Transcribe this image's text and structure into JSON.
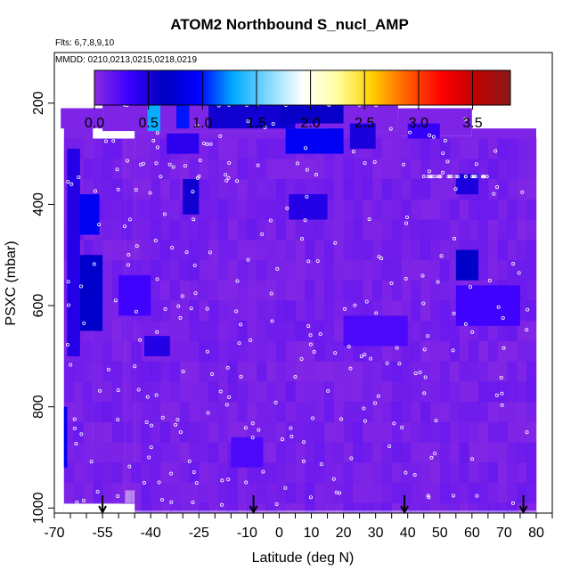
{
  "chart_data": {
    "type": "heatmap",
    "title": "ATOM2 Northbound S_nucl_AMP",
    "flights_note": "Flts: 6,7,8,9,10",
    "dates_note": "MMDD: 0210,0213,0215,0218,0219",
    "xlabel": "Latitude (deg N)",
    "ylabel": "PSXC (mbar)",
    "xlim": [
      -70,
      85
    ],
    "ylim": [
      1010,
      100
    ],
    "x_tick_labels": [
      "-70",
      "-55",
      "-40",
      "-25",
      "-10",
      "0",
      "10",
      "20",
      "30",
      "40",
      "50",
      "60",
      "70",
      "80"
    ],
    "x_tick_values": [
      -70,
      -55,
      -40,
      -25,
      -10,
      0,
      10,
      20,
      30,
      40,
      50,
      60,
      70,
      80
    ],
    "y_tick_labels": [
      "200",
      "400",
      "600",
      "800",
      "1000"
    ],
    "y_tick_values": [
      200,
      400,
      600,
      800,
      1000
    ],
    "colorbar": {
      "range": [
        0.0,
        3.85
      ],
      "tick_labels": [
        "0.0",
        "0.5",
        "1.0",
        "1.5",
        "2.0",
        "2.5",
        "3.0",
        "3.5"
      ],
      "tick_values": [
        0.0,
        0.5,
        1.0,
        1.5,
        2.0,
        2.5,
        3.0,
        3.5
      ],
      "colors": [
        "#8a2be2",
        "#3a00ff",
        "#0000c0",
        "#0000ff",
        "#00aaff",
        "#80d8ff",
        "#ffffff",
        "#ffffa0",
        "#ffd000",
        "#ff6000",
        "#ff0000",
        "#c00000",
        "#8b1a1a"
      ]
    },
    "background_value": 0.05,
    "patches": [
      {
        "lat": [
          -40,
          -38
        ],
        "p": [
          200,
          250
        ],
        "v": 2.6
      },
      {
        "lat": [
          -41,
          -37
        ],
        "p": [
          195,
          255
        ],
        "v": 1.3
      },
      {
        "lat": [
          -32,
          -28
        ],
        "p": [
          200,
          250
        ],
        "v": 1.0
      },
      {
        "lat": [
          -22,
          5
        ],
        "p": [
          200,
          250
        ],
        "v": 0.55
      },
      {
        "lat": [
          0,
          20
        ],
        "p": [
          190,
          240
        ],
        "v": 0.6
      },
      {
        "lat": [
          5,
          15
        ],
        "p": [
          250,
          290
        ],
        "v": 1.6
      },
      {
        "lat": [
          2,
          20
        ],
        "p": [
          250,
          300
        ],
        "v": 0.9
      },
      {
        "lat": [
          22,
          30
        ],
        "p": [
          240,
          290
        ],
        "v": 0.5
      },
      {
        "lat": [
          -62,
          -58
        ],
        "p": [
          390,
          440
        ],
        "v": 2.4
      },
      {
        "lat": [
          -63,
          -56
        ],
        "p": [
          380,
          460
        ],
        "v": 0.9
      },
      {
        "lat": [
          -61,
          -58
        ],
        "p": [
          530,
          570
        ],
        "v": 1.5
      },
      {
        "lat": [
          -62,
          -55
        ],
        "p": [
          500,
          650
        ],
        "v": 0.7
      },
      {
        "lat": [
          -66,
          -62
        ],
        "p": [
          290,
          700
        ],
        "v": 0.45
      },
      {
        "lat": [
          -67,
          -66
        ],
        "p": [
          800,
          920
        ],
        "v": 0.9
      },
      {
        "lat": [
          -42,
          -34
        ],
        "p": [
          660,
          700
        ],
        "v": 0.45
      },
      {
        "lat": [
          -35,
          -25
        ],
        "p": [
          260,
          300
        ],
        "v": 0.4
      },
      {
        "lat": [
          -30,
          -25
        ],
        "p": [
          350,
          420
        ],
        "v": 0.55
      },
      {
        "lat": [
          3,
          15
        ],
        "p": [
          380,
          430
        ],
        "v": 0.45
      },
      {
        "lat": [
          55,
          62
        ],
        "p": [
          490,
          550
        ],
        "v": 0.7
      },
      {
        "lat": [
          55,
          62
        ],
        "p": [
          340,
          380
        ],
        "v": 0.5
      },
      {
        "lat": [
          40,
          50
        ],
        "p": [
          240,
          270
        ],
        "v": 0.35
      },
      {
        "lat": [
          -15,
          -5
        ],
        "p": [
          860,
          920
        ],
        "v": 0.25
      },
      {
        "lat": [
          55,
          75
        ],
        "p": [
          560,
          640
        ],
        "v": 0.3
      },
      {
        "lat": [
          -50,
          -40
        ],
        "p": [
          540,
          620
        ],
        "v": 0.3
      },
      {
        "lat": [
          20,
          40
        ],
        "p": [
          620,
          680
        ],
        "v": 0.25
      }
    ],
    "arrows_lat": [
      -55,
      -8,
      39,
      76
    ]
  }
}
